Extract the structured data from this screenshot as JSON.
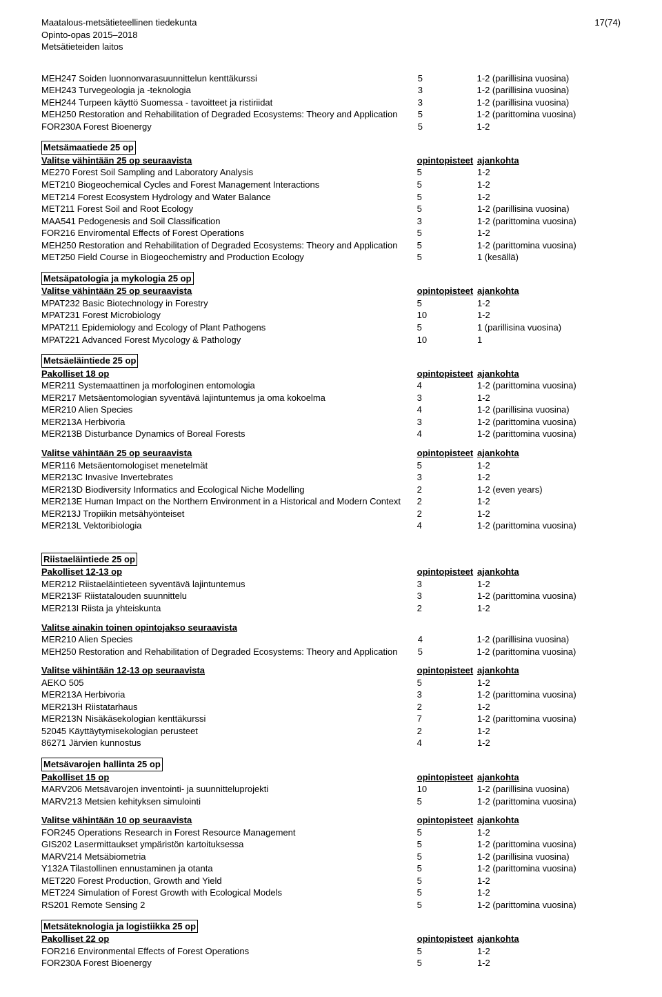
{
  "header": {
    "line1": "Maatalous-metsätieteellinen tiedekunta",
    "line2": "Opinto-opas 2015–2018",
    "line3": "Metsätieteiden laitos",
    "pagenum": "17(74)"
  },
  "col_points": "opintopisteet",
  "col_time": "ajankohta",
  "intro_rows": [
    {
      "n": "MEH247 Soiden luonnonvarasuunnittelun kenttäkurssi",
      "p": "5",
      "t": "1-2 (parillisina vuosina)"
    },
    {
      "n": "MEH243 Turvegeologia ja -teknologia",
      "p": "3",
      "t": "1-2 (parillisina vuosina)"
    },
    {
      "n": "MEH244 Turpeen käyttö Suomessa - tavoitteet ja ristiriidat",
      "p": "3",
      "t": "1-2 (parillisina vuosina)"
    },
    {
      "n": "MEH250 Restoration and Rehabilitation of Degraded Ecosystems: Theory and Application",
      "p": "5",
      "t": "1-2 (parittomina vuosina)"
    },
    {
      "n": "FOR230A Forest Bioenergy",
      "p": "5",
      "t": "1-2"
    }
  ],
  "sections": [
    {
      "title": "Metsämaatiede 25 op",
      "groups": [
        {
          "heading": "Valitse vähintään 25 op seuraavista",
          "rows": [
            {
              "n": "ME270 Forest Soil Sampling and Laboratory Analysis",
              "p": "5",
              "t": "1-2"
            },
            {
              "n": "MET210 Biogeochemical Cycles and Forest Management Interactions",
              "p": "5",
              "t": "1-2"
            },
            {
              "n": "MET214 Forest Ecosystem Hydrology and Water Balance",
              "p": "5",
              "t": "1-2"
            },
            {
              "n": "MET211 Forest Soil and Root Ecology",
              "p": "5",
              "t": "1-2 (parillisina vuosina)"
            },
            {
              "n": "MAA541 Pedogenesis and Soil Classification",
              "p": "3",
              "t": "1-2 (parittomina vuosina)"
            },
            {
              "n": "FOR216 Enviromental Effects of Forest Operations",
              "p": "5",
              "t": "1-2"
            },
            {
              "n": "MEH250 Restoration and Rehabilitation of Degraded Ecosystems: Theory and Application",
              "p": "5",
              "t": "1-2 (parittomina vuosina)"
            },
            {
              "n": "MET250 Field Course in Biogeochemistry and Production Ecology",
              "p": "5",
              "t": "1 (kesällä)"
            }
          ]
        }
      ]
    },
    {
      "title": "Metsäpatologia ja mykologia 25 op",
      "groups": [
        {
          "heading": "Valitse vähintään 25 op seuraavista",
          "rows": [
            {
              "n": "MPAT232 Basic Biotechnology in Forestry",
              "p": "5",
              "t": "1-2"
            },
            {
              "n": "MPAT231 Forest Microbiology",
              "p": "10",
              "t": "1-2"
            },
            {
              "n": "MPAT211 Epidemiology and Ecology of Plant Pathogens",
              "p": "5",
              "t": "1 (parillisina vuosina)"
            },
            {
              "n": "MPAT221 Advanced Forest Mycology & Pathology",
              "p": "10",
              "t": "1"
            }
          ]
        }
      ]
    },
    {
      "title": "Metsäeläintiede 25 op",
      "groups": [
        {
          "heading": "Pakolliset 18 op",
          "rows": [
            {
              "n": "MER211 Systemaattinen ja morfologinen entomologia",
              "p": "4",
              "t": "1-2 (parittomina vuosina)"
            },
            {
              "n": "MER217 Metsäentomologian syventävä lajintuntemus ja oma kokoelma",
              "p": "3",
              "t": "1-2"
            },
            {
              "n": "MER210 Alien Species",
              "p": "4",
              "t": "1-2 (parillisina vuosina)"
            },
            {
              "n": "MER213A Herbivoria",
              "p": "3",
              "t": "1-2 (parittomina vuosina)"
            },
            {
              "n": "MER213B Disturbance Dynamics of Boreal Forests",
              "p": "4",
              "t": "1-2 (parittomina vuosina)"
            }
          ]
        },
        {
          "heading": "Valitse vähintään 25 op seuraavista",
          "rows": [
            {
              "n": "MER116 Metsäentomologiset menetelmät",
              "p": "5",
              "t": "1-2"
            },
            {
              "n": "MER213C Invasive Invertebrates",
              "p": "3",
              "t": "1-2"
            },
            {
              "n": "MER213D Biodiversity Informatics and Ecological Niche Modelling",
              "p": "2",
              "t": "1-2 (even years)"
            },
            {
              "n": "MER213E Human Impact on the Northern Environment in a Historical and Modern Context",
              "p": "2",
              "t": "1-2"
            },
            {
              "n": "MER213J Tropiikin metsähyönteiset",
              "p": "2",
              "t": "1-2"
            },
            {
              "n": "MER213L Vektoribiologia",
              "p": "4",
              "t": "1-2 (parittomina vuosina)"
            }
          ]
        }
      ]
    },
    {
      "title": "Riistaeläintiede 25 op",
      "extra_gap": true,
      "groups": [
        {
          "heading": "Pakolliset 12-13 op",
          "rows": [
            {
              "n": "MER212 Riistaeläintieteen syventävä lajintuntemus",
              "p": "3",
              "t": "1-2"
            },
            {
              "n": "MER213F Riistatalouden suunnittelu",
              "p": "3",
              "t": "1-2 (parittomina vuosina)"
            },
            {
              "n": "MER213I Riista ja yhteiskunta",
              "p": "2",
              "t": "1-2"
            }
          ]
        },
        {
          "heading": "Valitse ainakin toinen opintojakso seuraavista",
          "no_cols": true,
          "rows": [
            {
              "n": "MER210 Alien Species",
              "p": "4",
              "t": "1-2 (parillisina vuosina)"
            },
            {
              "n": "MEH250 Restoration and Rehabilitation of Degraded Ecosystems: Theory and Application",
              "p": "5",
              "t": "1-2 (parittomina vuosina)"
            }
          ]
        },
        {
          "heading": "Valitse vähintään 12-13 op seuraavista",
          "rows": [
            {
              "n": "AEKO 505",
              "p": "5",
              "t": "1-2"
            },
            {
              "n": "MER213A Herbivoria",
              "p": "3",
              "t": "1-2 (parittomina vuosina)"
            },
            {
              "n": "MER213H Riistatarhaus",
              "p": "2",
              "t": "1-2"
            },
            {
              "n": "MER213N Nisäkäsekologian kenttäkurssi",
              "p": "7",
              "t": "1-2 (parittomina vuosina)"
            },
            {
              "n": "52045 Käyttäytymisekologian perusteet",
              "p": "2",
              "t": "1-2"
            },
            {
              "n": "86271 Järvien kunnostus",
              "p": "4",
              "t": "1-2"
            }
          ]
        }
      ]
    },
    {
      "title": "Metsävarojen hallinta 25 op",
      "groups": [
        {
          "heading": "Pakolliset 15 op",
          "rows": [
            {
              "n": "MARV206 Metsävarojen inventointi- ja suunnitteluprojekti",
              "p": "10",
              "t": "1-2 (parillisina vuosina)"
            },
            {
              "n": "MARV213 Metsien kehityksen simulointi",
              "p": "5",
              "t": "1-2 (parittomina vuosina)"
            }
          ]
        },
        {
          "heading": "Valitse vähintään 10 op seuraavista",
          "rows": [
            {
              "n": "FOR245 Operations Research in Forest Resource Management",
              "p": "5",
              "t": "1-2"
            },
            {
              "n": "GIS202 Lasermittaukset ympäristön kartoituksessa",
              "p": "5",
              "t": "1-2 (parittomina vuosina)"
            },
            {
              "n": "MARV214 Metsäbiometria",
              "p": "5",
              "t": "1-2 (parillisina vuosina)"
            },
            {
              "n": "Y132A Tilastollinen ennustaminen ja otanta",
              "p": "5",
              "t": "1-2 (parittomina vuosina)"
            },
            {
              "n": "MET220 Forest Production, Growth and Yield",
              "p": "5",
              "t": "1-2"
            },
            {
              "n": "MET224 Simulation of Forest Growth with Ecological Models",
              "p": "5",
              "t": "1-2"
            },
            {
              "n": "RS201 Remote Sensing 2",
              "p": "5",
              "t": "1-2 (parittomina vuosina)"
            }
          ]
        }
      ]
    },
    {
      "title": "Metsäteknologia ja logistiikka 25 op",
      "groups": [
        {
          "heading": "Pakolliset 22 op",
          "rows": [
            {
              "n": "FOR216 Environmental Effects of Forest Operations",
              "p": "5",
              "t": "1-2"
            },
            {
              "n": "FOR230A Forest Bioenergy",
              "p": "5",
              "t": "1-2"
            }
          ]
        }
      ]
    }
  ]
}
